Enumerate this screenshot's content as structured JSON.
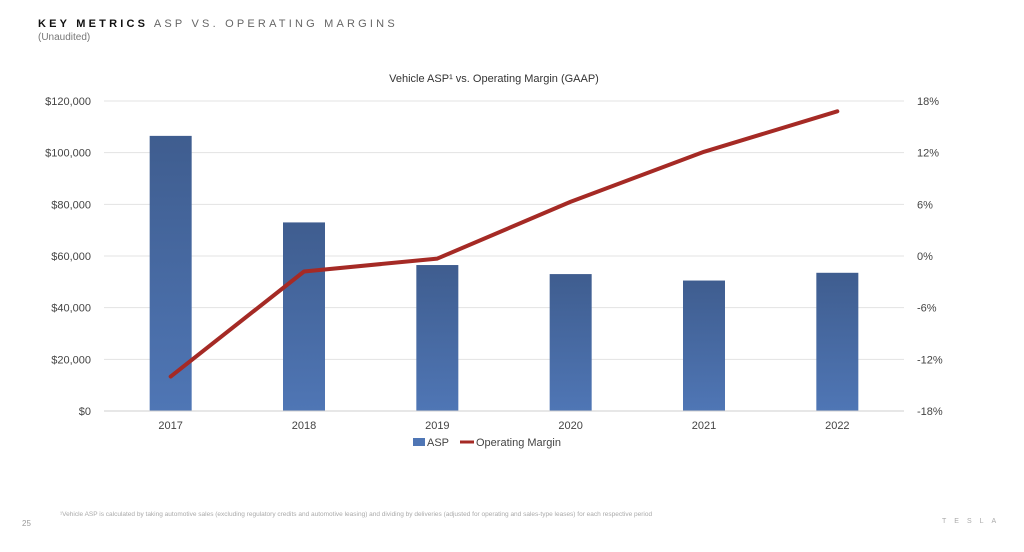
{
  "slide": {
    "title_bold": "KEY METRICS",
    "title_rest": "ASP VS. OPERATING MARGINS",
    "subtitle": "(Unaudited)",
    "footnote": "¹Vehicle ASP is calculated by taking automotive sales (excluding regulatory credits and automotive leasing) and dividing by deliveries (adjusted for operating and sales-type leases) for each respective period",
    "page_number": "25",
    "brand": "TESLA"
  },
  "colors": {
    "bar_top": "#3f5d8f",
    "bar_bottom": "#4f76b5",
    "line": "#a52a25",
    "grid": "#e3e3e3"
  },
  "chart_data": {
    "type": "bar",
    "title": "Vehicle ASP¹ vs. Operating Margin (GAAP)",
    "categories": [
      "2017",
      "2018",
      "2019",
      "2020",
      "2021",
      "2022"
    ],
    "series": [
      {
        "name": "ASP",
        "type": "bar",
        "axis": "left",
        "values": [
          106500,
          73000,
          56500,
          53000,
          50500,
          53500
        ]
      },
      {
        "name": "Operating Margin",
        "type": "line",
        "axis": "right",
        "values": [
          -14.0,
          -1.8,
          -0.3,
          6.3,
          12.1,
          16.8
        ]
      }
    ],
    "y_left": {
      "lim": [
        0,
        120000
      ],
      "ticks": [
        0,
        20000,
        40000,
        60000,
        80000,
        100000,
        120000
      ],
      "tick_labels": [
        "$0",
        "$20,000",
        "$40,000",
        "$60,000",
        "$80,000",
        "$100,000",
        "$120,000"
      ]
    },
    "y_right": {
      "lim": [
        -18,
        18
      ],
      "ticks": [
        -18,
        -12,
        -6,
        0,
        6,
        12,
        18
      ],
      "tick_labels": [
        "-18%",
        "-12%",
        "-6%",
        "0%",
        "6%",
        "12%",
        "18%"
      ]
    },
    "grid": true,
    "legend": "bottom"
  }
}
